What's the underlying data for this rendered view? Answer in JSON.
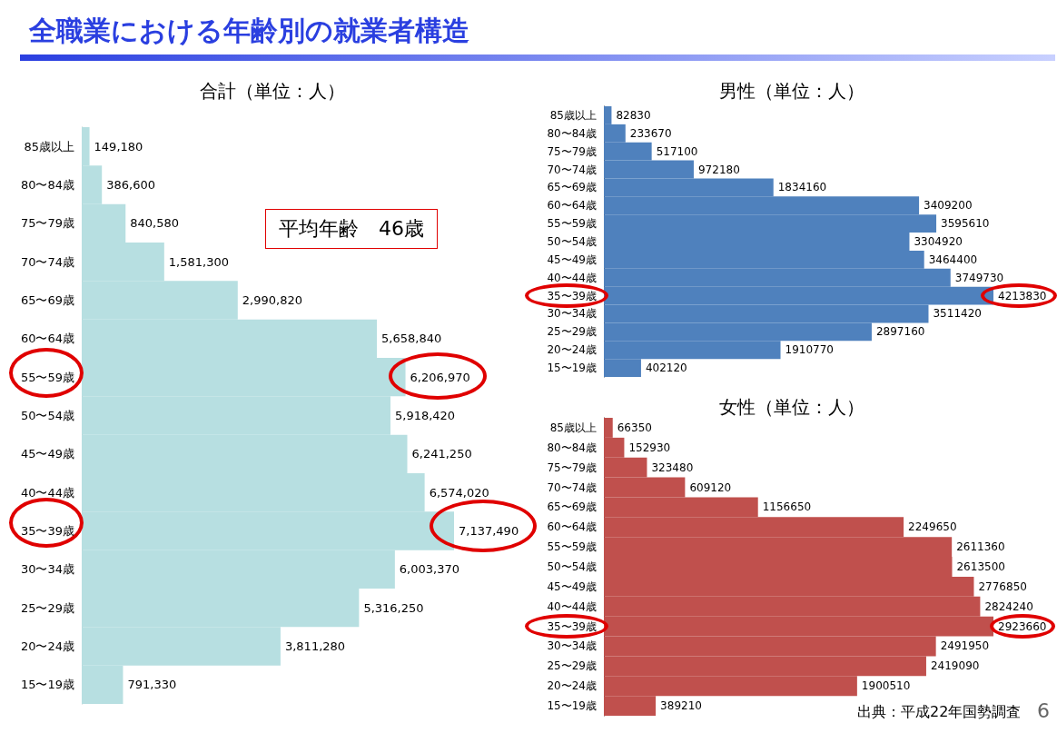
{
  "chart_data": [
    {
      "type": "bar",
      "orientation": "horizontal",
      "title": "合計（単位：人）",
      "categories": [
        "85歳以上",
        "80〜84歳",
        "75〜79歳",
        "70〜74歳",
        "65〜69歳",
        "60〜64歳",
        "55〜59歳",
        "50〜54歳",
        "45〜49歳",
        "40〜44歳",
        "35〜39歳",
        "30〜34歳",
        "25〜29歳",
        "20〜24歳",
        "15〜19歳"
      ],
      "values": [
        149180,
        386600,
        840580,
        1581300,
        2990820,
        5658840,
        6206970,
        5918420,
        6241250,
        6574020,
        7137490,
        6003370,
        5316250,
        3811280,
        791330
      ],
      "value_labels": [
        "149,180",
        "386,600",
        "840,580",
        "1,581,300",
        "2,990,820",
        "5,658,840",
        "6,206,970",
        "5,918,420",
        "6,241,250",
        "6,574,020",
        "7,137,490",
        "6,003,370",
        "5,316,250",
        "3,811,280",
        "791,330"
      ],
      "color": "#b7dfe1",
      "tick_labels": "y",
      "annotations": [
        "全職業における年齢別の就業者構造",
        "平均年齢　46歳",
        "出典：平成22年国勢調査",
        "6"
      ]
    },
    {
      "type": "bar",
      "orientation": "horizontal",
      "title": "男性（単位：人）",
      "categories": [
        "85歳以上",
        "80〜84歳",
        "75〜79歳",
        "70〜74歳",
        "65〜69歳",
        "60〜64歳",
        "55〜59歳",
        "50〜54歳",
        "45〜49歳",
        "40〜44歳",
        "35〜39歳",
        "30〜34歳",
        "25〜29歳",
        "20〜24歳",
        "15〜19歳"
      ],
      "values": [
        82830,
        233670,
        517100,
        972180,
        1834160,
        3409200,
        3595610,
        3304920,
        3464400,
        3749730,
        4213830,
        3511420,
        2897160,
        1910770,
        402120
      ],
      "color": "#4f81bd",
      "data_labels": true,
      "tick_labels": "y"
    },
    {
      "type": "bar",
      "orientation": "horizontal",
      "title": "女性（単位：人）",
      "categories": [
        "85歳以上",
        "80〜84歳",
        "75〜79歳",
        "70〜74歳",
        "65〜69歳",
        "60〜64歳",
        "55〜59歳",
        "50〜54歳",
        "45〜49歳",
        "40〜44歳",
        "35〜39歳",
        "30〜34歳",
        "25〜29歳",
        "20〜24歳",
        "15〜19歳"
      ],
      "values": [
        66350,
        152930,
        323480,
        609120,
        1156650,
        2249650,
        2611360,
        2613500,
        2776850,
        2824240,
        2923660,
        2491950,
        2419090,
        1900510,
        389210
      ],
      "color": "#c0504d",
      "data_labels": true,
      "tick_labels": "y"
    }
  ]
}
